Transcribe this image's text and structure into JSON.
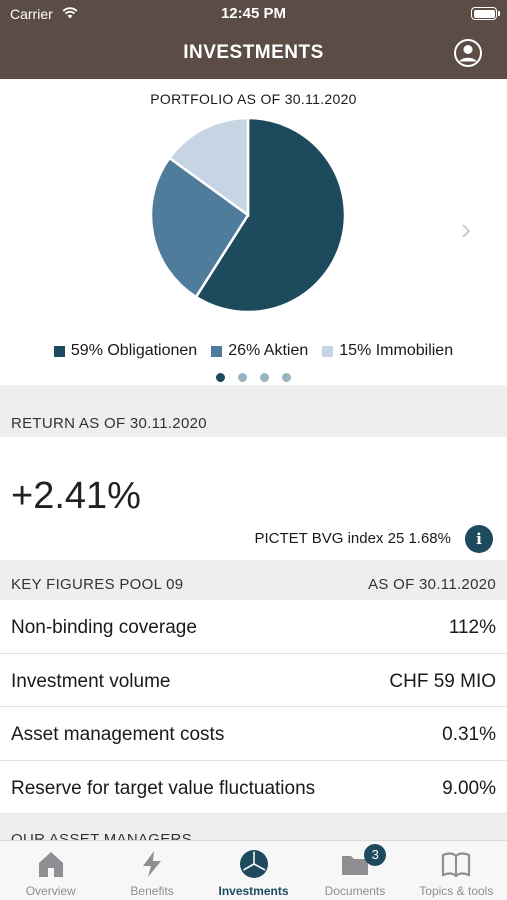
{
  "status_bar": {
    "carrier": "Carrier",
    "time": "12:45 PM"
  },
  "nav": {
    "title": "INVESTMENTS"
  },
  "portfolio": {
    "heading": "PORTFOLIO AS OF 30.11.2020",
    "legend": [
      {
        "label": "59% Obligationen",
        "color": "#1e4a5e"
      },
      {
        "label": "26% Aktien",
        "color": "#4f7c9b"
      },
      {
        "label": "15% Immobilien",
        "color": "#c7d4e4"
      }
    ],
    "pages_total": 4,
    "page_active": 1
  },
  "chart_data": {
    "type": "pie",
    "title": "PORTFOLIO AS OF 30.11.2020",
    "categories": [
      "Obligationen",
      "Aktien",
      "Immobilien"
    ],
    "values": [
      59,
      26,
      15
    ],
    "colors": [
      "#1e4a5e",
      "#4f7c9b",
      "#c7d4e4"
    ]
  },
  "return_section": {
    "header": "RETURN AS OF 30.11.2020",
    "value": "+2.41%",
    "index_text": "PICTET BVG index 25 1.68%",
    "info_glyph": "i"
  },
  "key_figures": {
    "header_left": "KEY FIGURES POOL 09",
    "header_right": "AS OF 30.11.2020",
    "rows": [
      {
        "label": "Non-binding coverage",
        "value": "112%"
      },
      {
        "label": "Investment volume",
        "value": "CHF 59 MIO"
      },
      {
        "label": "Asset management costs",
        "value": "0.31%"
      },
      {
        "label": "Reserve for target value fluctuations",
        "value": "9.00%"
      }
    ]
  },
  "asset_managers": {
    "header": "OUR ASSET MANAGERS"
  },
  "tab_bar": {
    "tabs": [
      {
        "label": "Overview",
        "icon": "house-icon"
      },
      {
        "label": "Benefits",
        "icon": "lightning-icon"
      },
      {
        "label": "Investments",
        "icon": "pie-chart-icon",
        "active": true
      },
      {
        "label": "Documents",
        "icon": "folder-icon",
        "badge": "3"
      },
      {
        "label": "Topics & tools",
        "icon": "book-icon"
      }
    ]
  }
}
